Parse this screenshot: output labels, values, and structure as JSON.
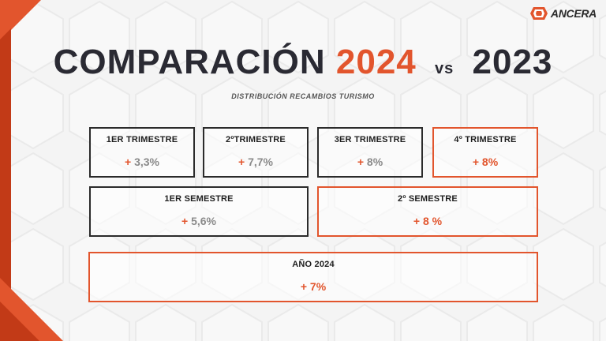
{
  "brand": {
    "logo_text": "ANCERA",
    "accent": "#e2552d",
    "dark": "#2a2a33"
  },
  "title": {
    "word": "COMPARACIÓN",
    "year_current": "2024",
    "vs": "vs",
    "year_previous": "2023"
  },
  "subtitle": "DISTRIBUCIÓN RECAMBIOS TURISMO",
  "quarters": [
    {
      "label": "1ER TRIMESTRE",
      "sign": "+",
      "value": "3,3%"
    },
    {
      "label": "2ºTRIMESTRE",
      "sign": "+",
      "value": "7,7%"
    },
    {
      "label": "3ER TRIMESTRE",
      "sign": "+",
      "value": "8%"
    },
    {
      "label": "4º TRIMESTRE",
      "sign": "+",
      "value": "8%"
    }
  ],
  "semesters": [
    {
      "label": "1ER SEMESTRE",
      "sign": "+",
      "value": "5,6%"
    },
    {
      "label": "2º SEMESTRE",
      "sign": "+",
      "value": "8 %"
    }
  ],
  "year_total": {
    "label": "AÑO 2024",
    "sign": "+",
    "value": "7%"
  }
}
